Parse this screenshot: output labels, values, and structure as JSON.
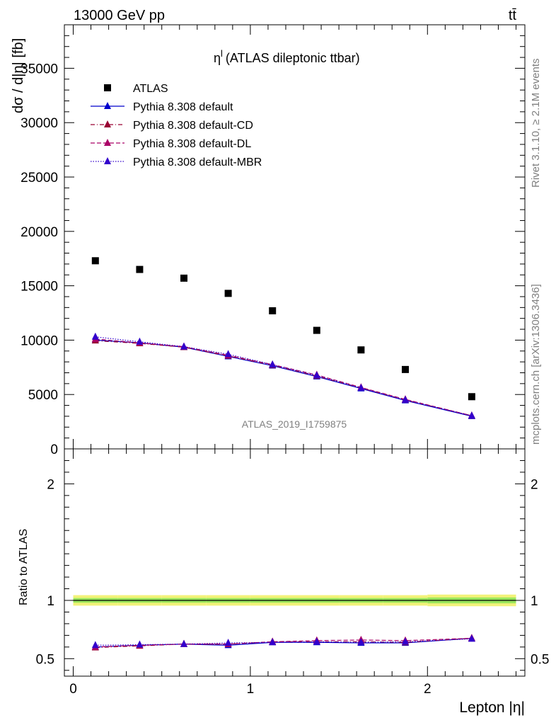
{
  "header": {
    "energy_label": "13000 GeV pp",
    "process_label": "tt̄"
  },
  "side": {
    "rivet_label": "Rivet 3.1.10, ≥ 2.1M events",
    "mcplots_label": "mcplots.cern.ch [arXiv:1306.3436]"
  },
  "chart_data": [
    {
      "type": "scatter",
      "panel": "main",
      "title": "η^l (ATLAS dileptonic ttbar)",
      "title_main": "η",
      "title_sup": "l",
      "title_rest": "(ATLAS dileptonic ttbar)",
      "watermark": "ATLAS_2019_I1759875",
      "ylabel": "dσ / d|η| [fb]",
      "xlim": [
        -0.05,
        2.55
      ],
      "ylim": [
        0,
        39000
      ],
      "yticks": [
        0,
        5000,
        10000,
        15000,
        20000,
        25000,
        30000,
        35000
      ],
      "ytick_labels": [
        "0",
        "5000",
        "10000",
        "15000",
        "20000",
        "25000",
        "30000",
        "35000"
      ],
      "x": [
        0.125,
        0.375,
        0.625,
        0.875,
        1.125,
        1.375,
        1.625,
        1.875,
        2.25
      ],
      "legend_position": "top-left",
      "series": [
        {
          "name": "ATLAS",
          "color": "#000000",
          "style": "data",
          "values": [
            17300,
            16500,
            15700,
            14300,
            12700,
            10900,
            9100,
            7300,
            4800
          ]
        },
        {
          "name": "Pythia 8.308 default",
          "color": "#0000cc",
          "style": "solid",
          "values": [
            10000,
            9750,
            9350,
            8500,
            7650,
            6650,
            5550,
            4450,
            3000
          ]
        },
        {
          "name": "Pythia 8.308 default-CD",
          "color": "#990033",
          "style": "dashdot",
          "values": [
            9950,
            9700,
            9350,
            8550,
            7700,
            6700,
            5600,
            4500,
            3050
          ]
        },
        {
          "name": "Pythia 8.308 default-DL",
          "color": "#aa0066",
          "style": "dashed",
          "values": [
            10100,
            9750,
            9400,
            8600,
            7750,
            6800,
            5650,
            4550,
            3050
          ]
        },
        {
          "name": "Pythia 8.308 default-MBR",
          "color": "#3300cc",
          "style": "dotted",
          "values": [
            10300,
            9850,
            9400,
            8700,
            7750,
            6750,
            5600,
            4500,
            3050
          ]
        }
      ]
    },
    {
      "type": "line",
      "panel": "ratio",
      "ylabel": "Ratio to ATLAS",
      "xlabel": "Lepton |η|",
      "xlim": [
        -0.05,
        2.55
      ],
      "ylim": [
        0.35,
        2.3
      ],
      "xticks": [
        0,
        1,
        2
      ],
      "xtick_labels": [
        "0",
        "1",
        "2"
      ],
      "yticks": [
        0.5,
        1,
        2
      ],
      "ytick_labels": [
        "0.5",
        "1",
        "2"
      ],
      "x": [
        0.125,
        0.375,
        0.625,
        0.875,
        1.125,
        1.375,
        1.625,
        1.875,
        2.25
      ],
      "bands": {
        "outer_color": "#f2f27a",
        "inner_color": "#99e65c",
        "x_edges": [
          0,
          0.25,
          0.5,
          0.75,
          1.0,
          1.25,
          1.5,
          1.75,
          2.0,
          2.5
        ],
        "outer_half": [
          0.045,
          0.045,
          0.045,
          0.045,
          0.045,
          0.045,
          0.045,
          0.045,
          0.05
        ],
        "inner_half": [
          0.02,
          0.02,
          0.02,
          0.02,
          0.02,
          0.02,
          0.02,
          0.02,
          0.025
        ]
      },
      "series": [
        {
          "name": "Pythia 8.308 default",
          "color": "#0000cc",
          "style": "solid",
          "values": [
            0.6,
            0.615,
            0.625,
            0.615,
            0.64,
            0.64,
            0.635,
            0.635,
            0.675
          ]
        },
        {
          "name": "Pythia 8.308 default-CD",
          "color": "#990033",
          "style": "dashdot",
          "values": [
            0.595,
            0.61,
            0.625,
            0.625,
            0.645,
            0.645,
            0.645,
            0.64,
            0.675
          ]
        },
        {
          "name": "Pythia 8.308 default-DL",
          "color": "#aa0066",
          "style": "dashed",
          "values": [
            0.6,
            0.615,
            0.625,
            0.625,
            0.645,
            0.655,
            0.66,
            0.655,
            0.675
          ]
        },
        {
          "name": "Pythia 8.308 default-MBR",
          "color": "#3300cc",
          "style": "dotted",
          "values": [
            0.615,
            0.62,
            0.625,
            0.635,
            0.64,
            0.645,
            0.64,
            0.645,
            0.67
          ]
        }
      ]
    }
  ]
}
